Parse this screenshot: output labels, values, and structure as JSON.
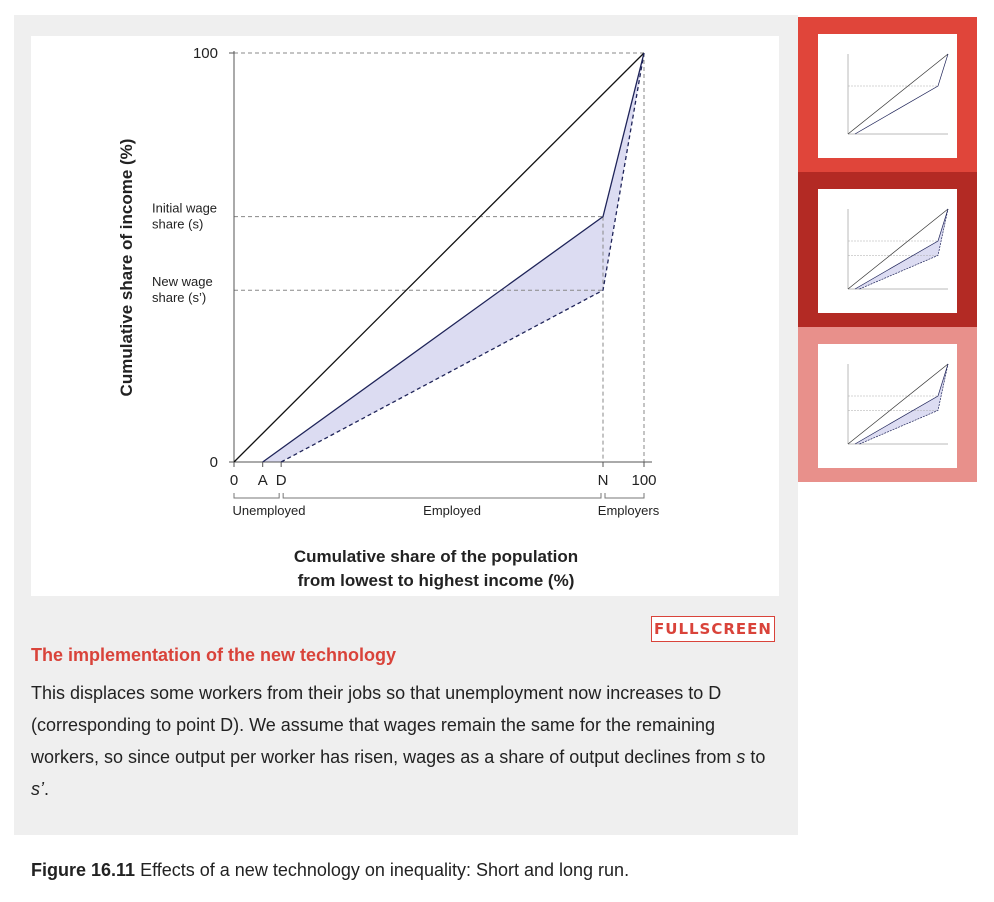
{
  "chart_data": {
    "type": "line",
    "title": "",
    "xlabel": [
      "Cumulative share of the population",
      "from lowest to highest income (%)"
    ],
    "ylabel": "Cumulative share of income (%)",
    "xlim": [
      0,
      100
    ],
    "ylim": [
      0,
      100
    ],
    "y_ticks": [
      {
        "value": 0,
        "label": "0"
      },
      {
        "value": 100,
        "label": "100"
      }
    ],
    "y_reference_labels": [
      {
        "value": 60,
        "lines": [
          "Initial wage",
          "share (s)"
        ]
      },
      {
        "value": 42,
        "lines": [
          "New wage",
          "share (s’)"
        ]
      }
    ],
    "x_ticks": [
      {
        "value": 0,
        "label": "0"
      },
      {
        "value": 7,
        "label": "A"
      },
      {
        "value": 11.5,
        "label": "D"
      },
      {
        "value": 90,
        "label": "N"
      },
      {
        "value": 100,
        "label": "100"
      }
    ],
    "x_groups": [
      "Unemployed",
      "Employed",
      "Employers"
    ],
    "series": [
      {
        "style": "solid",
        "x": [
          0,
          100
        ],
        "y": [
          0,
          100
        ]
      },
      {
        "style": "solid",
        "x": [
          7,
          90,
          100
        ],
        "y": [
          0,
          60,
          100
        ]
      },
      {
        "style": "dashed",
        "x": [
          11.5,
          90,
          100
        ],
        "y": [
          0,
          42,
          100
        ]
      }
    ],
    "shaded_region": "between initial and new Lorenz curves",
    "grid": false
  },
  "fullscreen_label": "FULLSCREEN",
  "step": {
    "title": "The implementation of the new technology",
    "text": "This displaces some workers from their jobs so that unemployment now increases to D (corresponding to point D). We assume that wages remain the same for the remaining workers, so since output per worker has risen, wages as a share of output declines from",
    "var1": "s",
    "mid": "to",
    "var2": "s’",
    "end": "."
  },
  "caption": {
    "label": "Figure 16.11",
    "text": "Effects of a new technology on inequality: Short and long run."
  },
  "thumbnails": [
    {
      "step": 1,
      "frame_color": "#e0453a"
    },
    {
      "step": 2,
      "frame_color": "#b32a24"
    },
    {
      "step": 3,
      "frame_color": "#e8908b"
    }
  ],
  "colors": {
    "accent": "#d9433a",
    "curve": "#1f2459",
    "shade": "#dcdcf2"
  }
}
